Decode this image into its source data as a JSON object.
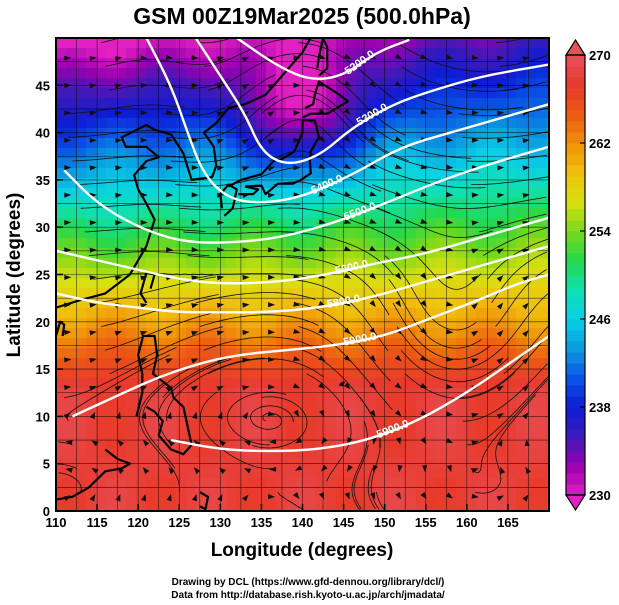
{
  "header": {
    "title": "GSM 00Z19Mar2025 (500.0hPa)"
  },
  "chart_data": {
    "type": "heatmap",
    "title": "GSM 00Z19Mar2025 (500.0hPa)",
    "xlabel": "Longitude (degrees)",
    "ylabel": "Latitude  (degrees)",
    "xlim": [
      110,
      170
    ],
    "ylim": [
      0,
      50
    ],
    "x_ticks": [
      "110",
      "115",
      "120",
      "125",
      "130",
      "135",
      "140",
      "145",
      "150",
      "155",
      "160",
      "165"
    ],
    "y_ticks": [
      "0",
      "5",
      "10",
      "15",
      "20",
      "25",
      "30",
      "35",
      "40",
      "45"
    ],
    "colorbar": {
      "min": 230,
      "max": 270,
      "tick_labels": [
        "230",
        "238",
        "246",
        "254",
        "262",
        "270"
      ],
      "tick_values": [
        230,
        238,
        246,
        254,
        262,
        270
      ]
    },
    "contours": [
      {
        "label": "5200.0",
        "value": 5200,
        "points": [
          [
            132,
            50
          ],
          [
            137,
            47
          ],
          [
            141,
            45.5
          ],
          [
            145,
            46
          ],
          [
            149,
            48.5
          ],
          [
            153,
            49.8
          ]
        ]
      },
      {
        "label": "5300.0",
        "value": 5300,
        "points": [
          [
            127,
            50
          ],
          [
            130,
            46
          ],
          [
            133,
            42
          ],
          [
            135,
            38
          ],
          [
            138,
            36.5
          ],
          [
            142,
            37.5
          ],
          [
            146,
            40.5
          ],
          [
            151,
            43
          ],
          [
            156,
            44.5
          ],
          [
            162,
            46
          ],
          [
            170,
            47.2
          ]
        ]
      },
      {
        "label": "5400.0",
        "value": 5400,
        "points": [
          [
            121,
            50
          ],
          [
            124,
            45
          ],
          [
            126,
            40
          ],
          [
            128,
            35.5
          ],
          [
            131,
            33
          ],
          [
            135,
            32.5
          ],
          [
            140,
            33.2
          ],
          [
            146,
            35.5
          ],
          [
            152,
            38.5
          ],
          [
            158,
            40
          ],
          [
            164,
            41.5
          ],
          [
            170,
            43
          ]
        ]
      },
      {
        "label": "5500.0",
        "value": 5500,
        "points": [
          [
            111,
            36
          ],
          [
            115,
            32.5
          ],
          [
            120,
            30
          ],
          [
            125,
            28.5
          ],
          [
            130,
            28.3
          ],
          [
            137,
            28.8
          ],
          [
            144,
            30.5
          ],
          [
            150,
            32.5
          ],
          [
            157,
            35
          ],
          [
            164,
            37
          ],
          [
            170,
            38.5
          ]
        ]
      },
      {
        "label": "5600.0",
        "value": 5600,
        "points": [
          [
            110,
            27.5
          ],
          [
            115,
            26.5
          ],
          [
            120,
            25.5
          ],
          [
            125,
            24.5
          ],
          [
            130,
            24
          ],
          [
            137,
            24.2
          ],
          [
            143,
            25
          ],
          [
            149,
            26.2
          ],
          [
            155,
            27.2
          ],
          [
            162,
            29
          ],
          [
            170,
            31
          ]
        ]
      },
      {
        "label": "5800.0",
        "value": 5800,
        "points": [
          [
            110,
            23
          ],
          [
            115,
            22
          ],
          [
            120,
            21.5
          ],
          [
            125,
            21
          ],
          [
            130,
            21
          ],
          [
            136,
            21
          ],
          [
            142,
            21.5
          ],
          [
            148,
            22.5
          ],
          [
            154,
            24
          ],
          [
            160,
            25.5
          ],
          [
            166,
            27
          ],
          [
            170,
            28
          ]
        ]
      },
      {
        "label": "5900.0",
        "value": 5900,
        "points": [
          [
            112,
            10
          ],
          [
            117,
            12
          ],
          [
            122,
            14
          ],
          [
            127,
            15.5
          ],
          [
            132,
            16.5
          ],
          [
            138,
            17
          ],
          [
            144,
            17.5
          ],
          [
            150,
            18.5
          ],
          [
            156,
            20.5
          ],
          [
            162,
            22.5
          ],
          [
            166,
            24
          ],
          [
            170,
            25
          ]
        ]
      },
      {
        "label": "5900.0",
        "value": 5900,
        "points": [
          [
            124,
            7.5
          ],
          [
            130,
            6.5
          ],
          [
            136,
            6.3
          ],
          [
            142,
            6.5
          ],
          [
            148,
            7.5
          ],
          [
            154,
            9.5
          ],
          [
            160,
            12.5
          ],
          [
            165,
            15.5
          ],
          [
            170,
            18.5
          ]
        ]
      }
    ]
  },
  "colors": {
    "colormap": [
      "#e020c0",
      "#9a00b0",
      "#3c1ab8",
      "#0d1cd6",
      "#0a55e6",
      "#0a9be0",
      "#0ad0e6",
      "#10e0b0",
      "#25d84a",
      "#7ad81a",
      "#d8e010",
      "#f0c00c",
      "#f0900a",
      "#ec5814",
      "#e83a2c",
      "#e8505c"
    ],
    "contour": "#ffffff",
    "frame": "#000000"
  },
  "footer": {
    "line1": "Drawing by DCL (https://www.gfd-dennou.org/library/dcl/)",
    "line2": "Data from http://database.rish.kyoto-u.ac.jp/arch/jmadata/"
  }
}
